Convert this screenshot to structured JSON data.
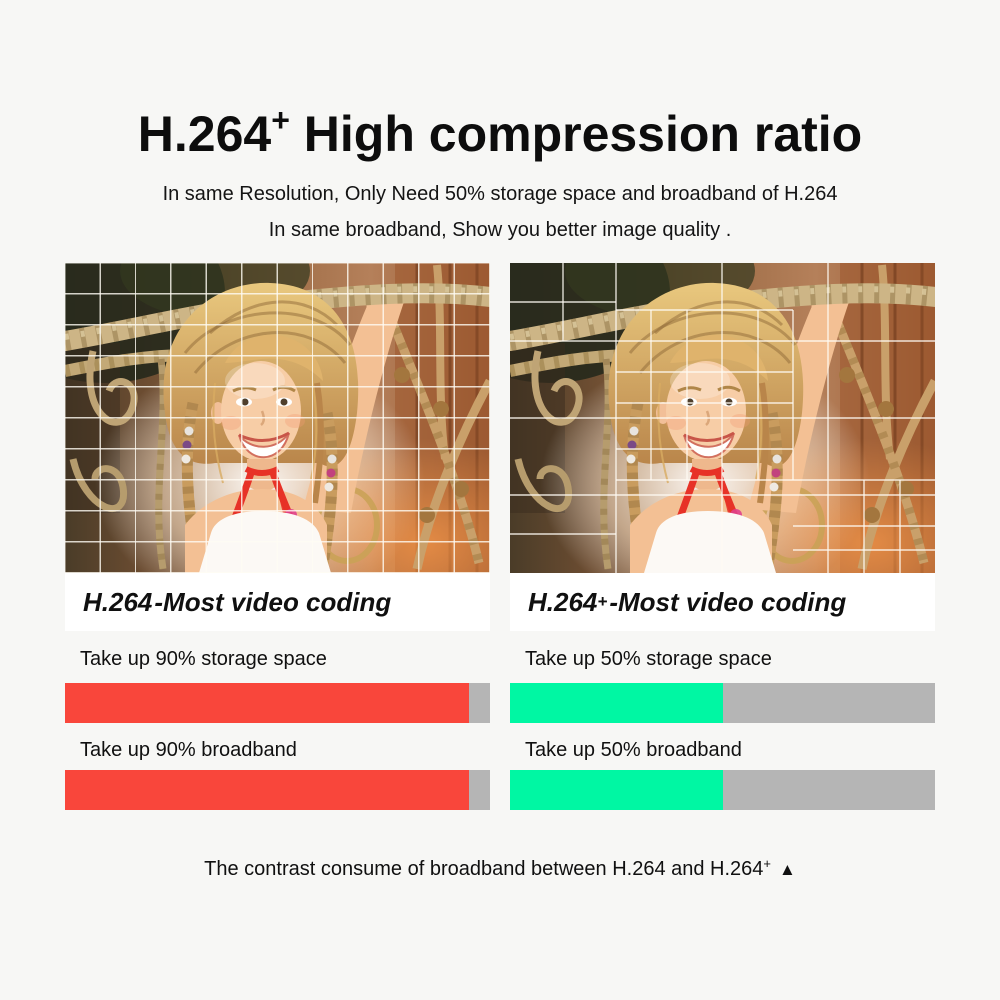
{
  "page": {
    "background": "#f7f7f5",
    "title": {
      "prefix": "H.264",
      "sup": "+",
      "rest": " High compression ratio"
    },
    "subtitle_line1": "In same Resolution, Only Need 50% storage space and broadband of H.264",
    "subtitle_line2": "In same broadband, Show you better image quality .",
    "footer": {
      "text": "The contrast consume of broadband between H.264 and H.264",
      "sup": "+",
      "arrow": "▲"
    }
  },
  "colors": {
    "h264_bar": "#f9463b",
    "h264plus_bar": "#00f7a3",
    "bar_track": "#b5b5b5",
    "grid_line": "rgba(255,252,244,0.8)",
    "caption_bg": "#ffffff",
    "text": "#101010"
  },
  "photo": {
    "description": "smiling girl with blonde braids on rope climbing net",
    "icon": "girl-rope-net-photo"
  },
  "panels": [
    {
      "id": "h264",
      "caption": {
        "prefix": "H.264",
        "sup": "",
        "rest": " -Most video coding"
      },
      "grid_type": "uniform small blocks",
      "rows": [
        {
          "label": "Take up 90% storage space",
          "value_percent": 90,
          "fill_display_percent": 95,
          "color": "#f9463b"
        },
        {
          "label": "Take up 90% broadband",
          "value_percent": 90,
          "fill_display_percent": 95,
          "color": "#f9463b"
        }
      ]
    },
    {
      "id": "h264plus",
      "caption": {
        "prefix": "H.264",
        "sup": "+",
        "rest": " -Most video coding"
      },
      "grid_type": "adaptive mixed blocks",
      "rows": [
        {
          "label": "Take up 50% storage space",
          "value_percent": 50,
          "fill_display_percent": 50,
          "color": "#00f7a3"
        },
        {
          "label": "Take up 50% broadband",
          "value_percent": 50,
          "fill_display_percent": 50,
          "color": "#00f7a3"
        }
      ]
    }
  ],
  "chart_data": {
    "type": "bar",
    "categories": [
      "storage space",
      "broadband"
    ],
    "series": [
      {
        "name": "H.264",
        "values": [
          90,
          90
        ],
        "color": "#f9463b"
      },
      {
        "name": "H.264+",
        "values": [
          50,
          50
        ],
        "color": "#00f7a3"
      }
    ],
    "unit": "%",
    "xlim": [
      0,
      100
    ],
    "layout": "horizontal progress bars, gray track = remainder to 100%"
  }
}
